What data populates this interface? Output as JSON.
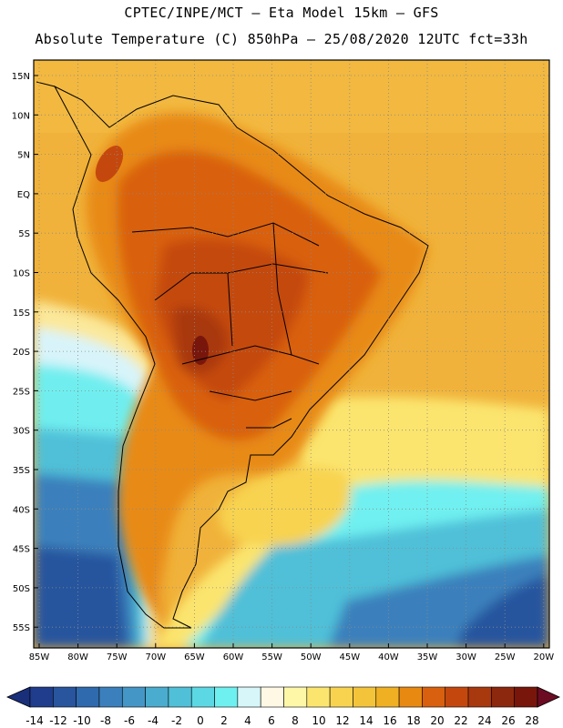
{
  "header": {
    "line1": "CPTEC/INPE/MCT –  Eta Model 15km – GFS",
    "line2": "Absolute Temperature (C) 850hPa – 25/08/2020 12UTC fct=33h"
  },
  "map": {
    "variable": "Absolute Temperature (C)",
    "level": "850hPa",
    "lat_labels": [
      "15N",
      "10N",
      "5N",
      "EQ",
      "5S",
      "10S",
      "15S",
      "20S",
      "25S",
      "30S",
      "35S",
      "40S",
      "45S",
      "50S",
      "55S"
    ],
    "lon_labels": [
      "85W",
      "80W",
      "75W",
      "70W",
      "65W",
      "60W",
      "55W",
      "50W",
      "45W",
      "40W",
      "35W",
      "30W",
      "25W",
      "20W"
    ],
    "ocean_color": "#f0b23a",
    "land_hot_color": "#c0561c"
  },
  "colorbar": {
    "labels": [
      "-14",
      "-12",
      "-10",
      "-8",
      "-6",
      "-4",
      "-2",
      "0",
      "2",
      "4",
      "6",
      "8",
      "10",
      "12",
      "14",
      "16",
      "18",
      "20",
      "22",
      "24",
      "26",
      "28"
    ],
    "colors": [
      "#1f3d8c",
      "#28559e",
      "#2f6aae",
      "#3b80bc",
      "#4496c6",
      "#4aaccf",
      "#50c0d8",
      "#5cd8e4",
      "#6ff0f0",
      "#d6f6fa",
      "#fff8e4",
      "#fff7a8",
      "#fbe56e",
      "#f8d350",
      "#f3c43a",
      "#f0b023",
      "#e88a12",
      "#d9600e",
      "#c4480e",
      "#a8380e",
      "#8c280e",
      "#78160c"
    ],
    "low_arrow": "#1a2f7a",
    "high_arrow": "#6c0c22"
  }
}
